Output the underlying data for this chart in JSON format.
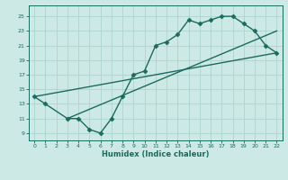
{
  "line1_x": [
    0,
    1,
    3,
    4,
    5,
    6,
    7,
    8,
    9,
    10,
    11,
    12,
    13,
    14,
    15,
    16,
    17,
    18,
    19,
    20,
    21,
    22
  ],
  "line1_y": [
    14,
    13,
    11,
    11,
    9.5,
    9,
    11,
    14,
    17,
    17.5,
    21,
    21.5,
    22.5,
    24.5,
    24,
    24.5,
    25,
    25,
    24,
    23,
    21,
    20
  ],
  "line2_x": [
    0,
    22
  ],
  "line2_y": [
    14,
    20
  ],
  "line3_x": [
    3,
    22
  ],
  "line3_y": [
    11,
    23
  ],
  "color": "#1a6b5e",
  "bg_color": "#cce9e5",
  "grid_color": "#aed4cf",
  "xlabel": "Humidex (Indice chaleur)",
  "xlim": [
    -0.5,
    22.5
  ],
  "ylim": [
    8.0,
    26.5
  ],
  "xticks": [
    0,
    1,
    2,
    3,
    4,
    5,
    6,
    7,
    8,
    9,
    10,
    11,
    12,
    13,
    14,
    15,
    16,
    17,
    18,
    19,
    20,
    21,
    22
  ],
  "yticks": [
    9,
    11,
    13,
    15,
    17,
    19,
    21,
    23,
    25
  ],
  "marker": "D",
  "markersize": 2.5,
  "linewidth": 1.0
}
